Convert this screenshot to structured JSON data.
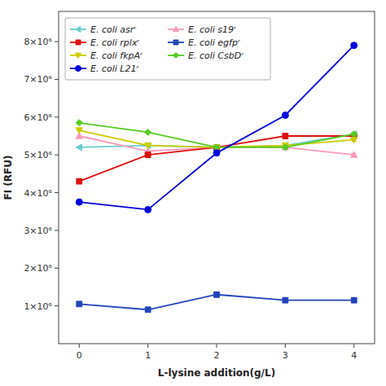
{
  "chart_data": {
    "type": "line",
    "x": [
      0,
      1,
      2,
      3,
      4
    ],
    "xlabel": "L-lysine addition(g/L)",
    "ylabel": "FI (RFU)",
    "xlim": [
      -0.3,
      4.3
    ],
    "xticks": [
      0,
      1,
      2,
      3,
      4
    ],
    "ylim": [
      0,
      8800000
    ],
    "yticks": [
      {
        "value": 1000000,
        "label": "1×10⁶"
      },
      {
        "value": 2000000,
        "label": "2×10⁶"
      },
      {
        "value": 3000000,
        "label": "3×10⁶"
      },
      {
        "value": 4000000,
        "label": "4×10⁶"
      },
      {
        "value": 5000000,
        "label": "5×10⁶"
      },
      {
        "value": 6000000,
        "label": "6×10⁶"
      },
      {
        "value": 7000000,
        "label": "7×10⁶"
      },
      {
        "value": 8000000,
        "label": "8×10⁶"
      }
    ],
    "grid": false,
    "legend": "upper left",
    "series": [
      {
        "name": "E. coli asrʳ",
        "color": "#66CCCC",
        "marker": "triangle-left",
        "line_style": "solid",
        "values": [
          5200000,
          5250000,
          5200000,
          5250000,
          5550000
        ],
        "errors": [
          0,
          0,
          40000,
          40000,
          40000
        ]
      },
      {
        "name": "E. coli s19ʳ",
        "color": "#FF99BB",
        "marker": "triangle-up",
        "line_style": "solid",
        "values": [
          5500000,
          5100000,
          5200000,
          5200000,
          5000000
        ],
        "errors": [
          0,
          0,
          40000,
          40000,
          40000
        ]
      },
      {
        "name": "E. coli rplxʳ",
        "color": "#DD1111",
        "marker": "square",
        "line_style": "solid",
        "values": [
          4300000,
          5000000,
          5200000,
          5500000,
          5500000
        ],
        "errors": [
          0,
          0,
          50000,
          50000,
          50000
        ]
      },
      {
        "name": "E. coli egfpʳ",
        "color": "#2244BB",
        "marker": "square",
        "line_style": "solid",
        "values": [
          1050000,
          900000,
          1300000,
          1150000,
          1150000
        ],
        "errors": [
          50000,
          50000,
          70000,
          60000,
          60000
        ]
      },
      {
        "name": "E. coli fkpAʳ",
        "color": "#CCCC00",
        "marker": "triangle-down",
        "line_style": "solid",
        "values": [
          5650000,
          5250000,
          5200000,
          5250000,
          5400000
        ],
        "errors": [
          0,
          0,
          40000,
          40000,
          40000
        ]
      },
      {
        "name": "E. coli CsbDʳ",
        "color": "#55CC22",
        "marker": "diamond",
        "line_style": "solid",
        "values": [
          5850000,
          5600000,
          5200000,
          5200000,
          5550000
        ],
        "errors": [
          0,
          0,
          40000,
          40000,
          40000
        ]
      },
      {
        "name": "E. coli L21ʳ",
        "color": "#0000DD",
        "marker": "circle",
        "line_style": "solid",
        "values": [
          3750000,
          3550000,
          5050000,
          6050000,
          7900000
        ],
        "errors": [
          0,
          0,
          0,
          0,
          0
        ]
      }
    ]
  }
}
